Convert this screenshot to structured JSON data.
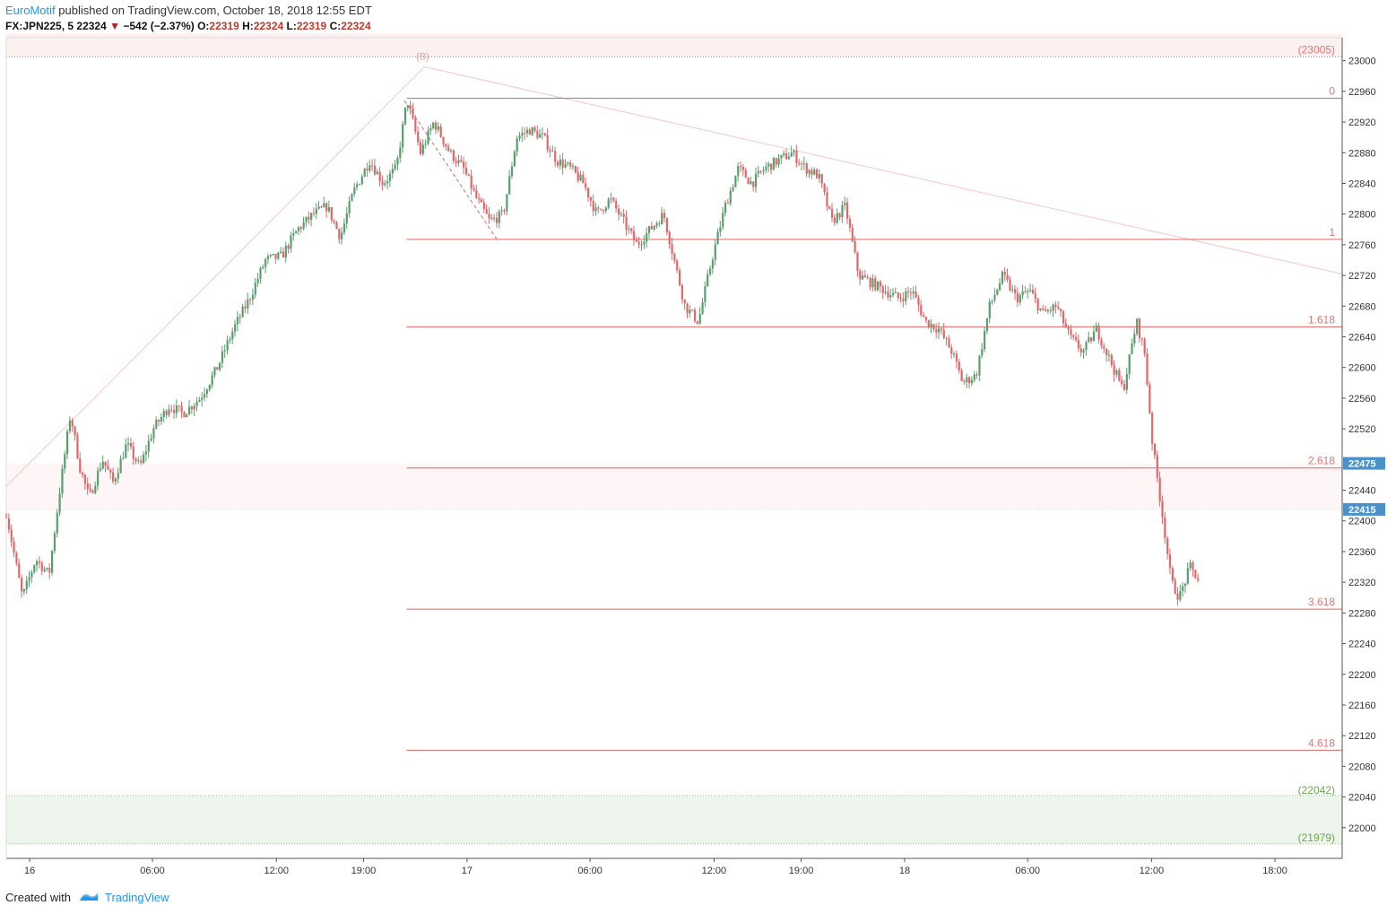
{
  "header": {
    "author": "EuroMotif",
    "published_text": "published on TradingView.com, October 18, 2018 12:55 EDT",
    "symbol": "FX:JPN225, 5",
    "last": "22324",
    "change": "−542 (−2.37%)",
    "o_label": "O:",
    "o_value": "22319",
    "h_label": "H:",
    "h_value": "22324",
    "l_label": "L:",
    "l_value": "22319",
    "c_label": "C:",
    "c_value": "22324"
  },
  "footer": {
    "created_with": "Created with",
    "brand": "TradingView"
  },
  "colors": {
    "up": "#5a9e6f",
    "down": "#e0676a",
    "fib": "#e06666",
    "zone_red": "#fdf0f0",
    "zone_green": "#eef5ec",
    "price_tag": "#4a90c9",
    "wave_line": "#f2c9c9"
  },
  "chart_data": {
    "type": "candlestick",
    "instrument": "FX:JPN225",
    "interval": "5",
    "x_ticks": [
      "16",
      "06:00",
      "12:00",
      "19:00",
      "17",
      "06:00",
      "12:00",
      "19:00",
      "18",
      "06:00",
      "12:00",
      "18:00"
    ],
    "y_ticks": [
      22000,
      22040,
      22080,
      22120,
      22160,
      22200,
      22240,
      22280,
      22320,
      22360,
      22400,
      22440,
      22520,
      22560,
      22600,
      22640,
      22680,
      22720,
      22760,
      22800,
      22840,
      22880,
      22920,
      22960,
      23000
    ],
    "ylim": [
      21960,
      23030
    ],
    "price_tags": [
      {
        "label": "22475",
        "value": 22475
      },
      {
        "label": "22415",
        "value": 22415
      }
    ],
    "fib_extension": {
      "levels": [
        {
          "label": "0",
          "value": 22951
        },
        {
          "label": "1",
          "value": 22767
        },
        {
          "label": "1.618",
          "value": 22653
        },
        {
          "label": "2.618",
          "value": 22469
        },
        {
          "label": "3.618",
          "value": 22285
        },
        {
          "label": "4.618",
          "value": 22101
        }
      ]
    },
    "zones": [
      {
        "label": "(23005)",
        "from": 23005,
        "to": 23035,
        "color": "red"
      },
      {
        "label": "(22042)",
        "from": 21979,
        "to": 22042,
        "color": "green"
      },
      {
        "label": "(21979)",
        "from": 21979,
        "to": 21979,
        "color": "green"
      }
    ],
    "highlight_band": {
      "from": 22415,
      "to": 22475
    },
    "wave_label": "(B)",
    "wave_points": [
      {
        "t": 0.0,
        "price": 22445
      },
      {
        "t": 0.313,
        "price": 22992
      },
      {
        "t": 1.0,
        "price": 22722
      }
    ],
    "trend_dashed": [
      {
        "t": 0.298,
        "price": 22948
      },
      {
        "t": 0.368,
        "price": 22765
      }
    ],
    "series": [
      {
        "anchors": [
          [
            0.0,
            22410
          ],
          [
            0.012,
            22300
          ],
          [
            0.022,
            22350
          ],
          [
            0.032,
            22330
          ],
          [
            0.04,
            22440
          ],
          [
            0.048,
            22540
          ],
          [
            0.055,
            22470
          ],
          [
            0.062,
            22430
          ],
          [
            0.072,
            22480
          ],
          [
            0.08,
            22450
          ],
          [
            0.09,
            22500
          ],
          [
            0.1,
            22470
          ],
          [
            0.11,
            22520
          ],
          [
            0.122,
            22550
          ],
          [
            0.132,
            22540
          ],
          [
            0.145,
            22560
          ],
          [
            0.158,
            22600
          ],
          [
            0.17,
            22650
          ],
          [
            0.182,
            22690
          ],
          [
            0.194,
            22740
          ],
          [
            0.206,
            22745
          ],
          [
            0.218,
            22780
          ],
          [
            0.23,
            22800
          ],
          [
            0.24,
            22810
          ],
          [
            0.25,
            22770
          ],
          [
            0.26,
            22830
          ],
          [
            0.272,
            22870
          ],
          [
            0.282,
            22840
          ],
          [
            0.292,
            22860
          ],
          [
            0.3,
            22950
          ],
          [
            0.31,
            22880
          ],
          [
            0.32,
            22920
          ],
          [
            0.332,
            22880
          ],
          [
            0.342,
            22860
          ],
          [
            0.352,
            22820
          ],
          [
            0.362,
            22790
          ],
          [
            0.372,
            22800
          ],
          [
            0.382,
            22900
          ],
          [
            0.392,
            22910
          ],
          [
            0.402,
            22900
          ],
          [
            0.412,
            22870
          ],
          [
            0.422,
            22860
          ],
          [
            0.432,
            22840
          ],
          [
            0.442,
            22800
          ],
          [
            0.452,
            22820
          ],
          [
            0.462,
            22790
          ],
          [
            0.472,
            22760
          ],
          [
            0.482,
            22780
          ],
          [
            0.492,
            22800
          ],
          [
            0.5,
            22740
          ],
          [
            0.508,
            22680
          ],
          [
            0.518,
            22660
          ],
          [
            0.528,
            22740
          ],
          [
            0.538,
            22810
          ],
          [
            0.548,
            22860
          ],
          [
            0.558,
            22840
          ],
          [
            0.568,
            22860
          ],
          [
            0.578,
            22870
          ],
          [
            0.588,
            22880
          ],
          [
            0.598,
            22860
          ],
          [
            0.608,
            22850
          ],
          [
            0.618,
            22790
          ],
          [
            0.628,
            22810
          ],
          [
            0.638,
            22720
          ],
          [
            0.648,
            22710
          ],
          [
            0.658,
            22700
          ],
          [
            0.668,
            22690
          ],
          [
            0.678,
            22700
          ],
          [
            0.688,
            22660
          ],
          [
            0.698,
            22650
          ],
          [
            0.708,
            22620
          ],
          [
            0.716,
            22580
          ],
          [
            0.726,
            22590
          ],
          [
            0.736,
            22680
          ],
          [
            0.746,
            22720
          ],
          [
            0.756,
            22690
          ],
          [
            0.766,
            22700
          ],
          [
            0.776,
            22670
          ],
          [
            0.786,
            22680
          ],
          [
            0.796,
            22640
          ],
          [
            0.806,
            22620
          ],
          [
            0.816,
            22650
          ],
          [
            0.826,
            22610
          ],
          [
            0.836,
            22570
          ],
          [
            0.846,
            22660
          ],
          [
            0.852,
            22620
          ],
          [
            0.858,
            22500
          ],
          [
            0.866,
            22400
          ],
          [
            0.872,
            22320
          ],
          [
            0.878,
            22300
          ],
          [
            0.886,
            22340
          ],
          [
            0.892,
            22324
          ]
        ]
      }
    ]
  }
}
